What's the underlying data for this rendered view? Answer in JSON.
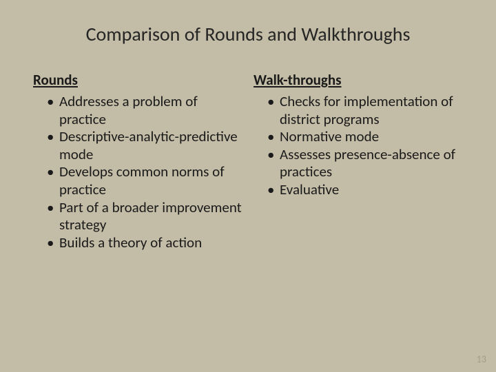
{
  "background_color": "#c3bca6",
  "text_color": "#1a1a1a",
  "pagenum_color": "#a49c84",
  "title": "Comparison of Rounds and Walkthroughs",
  "title_fontsize": 28,
  "heading_fontsize": 21,
  "body_fontsize": 21,
  "left": {
    "heading": "Rounds",
    "items": [
      "Addresses a problem of practice",
      "Descriptive-analytic-predictive mode",
      "Develops common norms of practice",
      "Part of a broader improvement strategy",
      "Builds a theory of action"
    ]
  },
  "right": {
    "heading": "Walk-throughs",
    "items": [
      "Checks for implementation of district programs",
      "Normative mode",
      "Assesses presence-absence of practices",
      "Evaluative"
    ]
  },
  "page_number": "13"
}
